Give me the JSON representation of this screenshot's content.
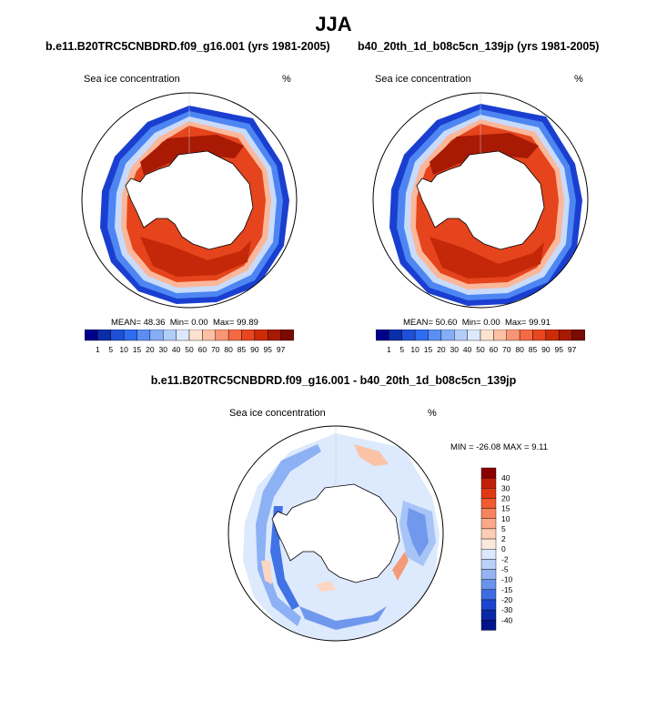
{
  "figure": {
    "season": "JJA",
    "left_case_title": "b.e11.B20TRC5CNBDRD.f09_g16.001 (yrs 1981-2005)",
    "right_case_title": "b40_20th_1d_b08c5cn_139jp (yrs 1981-2005)",
    "diff_title": "b.e11.B20TRC5CNBDRD.f09_g16.001 - b40_20th_1d_b08c5cn_139jp"
  },
  "panels": {
    "left": {
      "variable": "Sea ice concentration",
      "units": "%",
      "mean_label": "MEAN=",
      "mean": "48.36",
      "min_label": "Min=",
      "min": "0.00",
      "max_label": "Max=",
      "max": "99.89"
    },
    "right": {
      "variable": "Sea ice concentration",
      "units": "%",
      "mean_label": "MEAN=",
      "mean": "50.60",
      "min_label": "Min=",
      "min": "0.00",
      "max_label": "Max=",
      "max": "99.91"
    },
    "diff": {
      "variable": "Sea ice concentration",
      "units": "%",
      "minmax_text": "MIN = -26.08 MAX =   9.11"
    }
  },
  "chart_data": [
    {
      "type": "heatmap",
      "projection": "south polar stereographic",
      "title": "b.e11.B20TRC5CNBDRD.f09_g16.001 (yrs 1981-2005)",
      "variable": "Sea ice concentration",
      "units": "%",
      "stats": {
        "mean": 48.36,
        "min": 0.0,
        "max": 99.89
      },
      "colorbar_levels": [
        1,
        5,
        10,
        15,
        20,
        30,
        40,
        50,
        60,
        70,
        80,
        85,
        90,
        95,
        97
      ],
      "colorbar_colors": [
        "#00008b",
        "#0a2ea8",
        "#1f4fd6",
        "#2e6cf2",
        "#5a8ef5",
        "#86adf7",
        "#b3cdfa",
        "#dce9fc",
        "#fde2cf",
        "#fcc0a3",
        "#f99573",
        "#f46a45",
        "#e8461f",
        "#cc2b07",
        "#a61a03",
        "#7a0a02"
      ]
    },
    {
      "type": "heatmap",
      "projection": "south polar stereographic",
      "title": "b40_20th_1d_b08c5cn_139jp (yrs 1981-2005)",
      "variable": "Sea ice concentration",
      "units": "%",
      "stats": {
        "mean": 50.6,
        "min": 0.0,
        "max": 99.91
      },
      "colorbar_levels": [
        1,
        5,
        10,
        15,
        20,
        30,
        40,
        50,
        60,
        70,
        80,
        85,
        90,
        95,
        97
      ],
      "colorbar_colors": [
        "#00008b",
        "#0a2ea8",
        "#1f4fd6",
        "#2e6cf2",
        "#5a8ef5",
        "#86adf7",
        "#b3cdfa",
        "#dce9fc",
        "#fde2cf",
        "#fcc0a3",
        "#f99573",
        "#f46a45",
        "#e8461f",
        "#cc2b07",
        "#a61a03",
        "#7a0a02"
      ]
    },
    {
      "type": "heatmap",
      "projection": "south polar stereographic",
      "title": "b.e11.B20TRC5CNBDRD.f09_g16.001 - b40_20th_1d_b08c5cn_139jp",
      "variable": "Sea ice concentration",
      "units": "%",
      "stats": {
        "min": -26.08,
        "max": 9.11
      },
      "colorbar_levels": [
        40,
        30,
        20,
        15,
        10,
        5,
        2,
        0,
        -2,
        -5,
        -10,
        -15,
        -20,
        -30,
        -40
      ],
      "colorbar_colors": [
        "#8b0000",
        "#c0200a",
        "#e03a15",
        "#f25c30",
        "#f7845d",
        "#fba98a",
        "#fdcdb5",
        "#fde8dc",
        "#dce8fb",
        "#b9d0f7",
        "#93b3f2",
        "#6b92ec",
        "#3f6ce3",
        "#1c45cf",
        "#0a27a8",
        "#00158a"
      ]
    }
  ]
}
